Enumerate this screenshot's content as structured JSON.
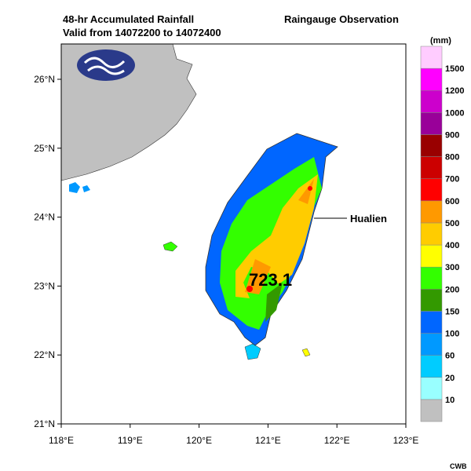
{
  "header": {
    "title_lines": [
      "48-hr Accumulated Rainfall",
      "Valid from 14072200 to 14072400"
    ],
    "right_title": "Raingauge Observation"
  },
  "map": {
    "lon_ticks": [
      "118°E",
      "119°E",
      "120°E",
      "121°E",
      "122°E",
      "123°E"
    ],
    "lat_ticks": [
      "21°N",
      "22°N",
      "23°N",
      "24°N",
      "25°N",
      "26°N"
    ],
    "annotations": {
      "max_value": "723.1",
      "station": "Hualien"
    }
  },
  "colorbar": {
    "unit": "(mm)",
    "labels": [
      "10",
      "20",
      "60",
      "100",
      "150",
      "200",
      "300",
      "400",
      "500",
      "600",
      "700",
      "800",
      "900",
      "1000",
      "1200",
      "1500"
    ],
    "colors": [
      "#c0c0c0",
      "#99ffff",
      "#00ccff",
      "#0099ff",
      "#0066ff",
      "#339900",
      "#33ff00",
      "#ffff00",
      "#ffcc00",
      "#ff9900",
      "#ff0000",
      "#cc0000",
      "#990000",
      "#990099",
      "#cc00cc",
      "#ff00ff",
      "#ffccff"
    ]
  },
  "footer": {
    "credit": "CWB"
  }
}
